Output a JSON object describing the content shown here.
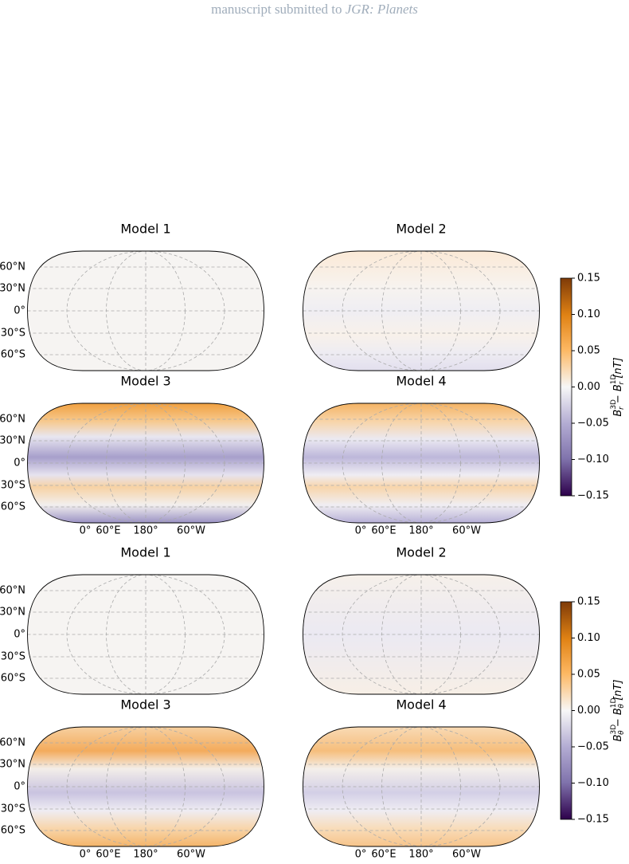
{
  "header": {
    "text": "manuscript submitted to",
    "journal": "JGR: Planets"
  },
  "figures": [
    {
      "panels": [
        "Model 1",
        "Model 2",
        "Model 3",
        "Model 4"
      ],
      "lat_labels": [
        "60°N",
        "30°N",
        "0°",
        "30°S",
        "60°S"
      ],
      "lon_labels": [
        "0°",
        "60°E",
        "180°",
        "60°W"
      ],
      "colorbar": {
        "label": [
          {
            "text": "B",
            "role": "base"
          },
          {
            "text": "3D",
            "role": "sup"
          },
          {
            "text": "r",
            "role": "sub"
          },
          {
            "text": " − B",
            "role": "base"
          },
          {
            "text": "1D",
            "role": "sup"
          },
          {
            "text": "r",
            "role": "sub"
          },
          {
            "text": " [nT]",
            "role": "base"
          }
        ],
        "lim": [
          -0.15,
          0.15
        ],
        "ticks": [
          {
            "value": -0.15,
            "label": "−0.15"
          },
          {
            "value": -0.1,
            "label": "−0.10"
          },
          {
            "value": -0.05,
            "label": "−0.05"
          },
          {
            "value": 0,
            "label": "0.00"
          },
          0.05,
          {
            "value": 0.1,
            "label": "0.10"
          },
          0.15
        ]
      }
    },
    {
      "panels": [
        "Model 1",
        "Model 2",
        "Model 3",
        "Model 4"
      ],
      "lat_labels": [
        "60°N",
        "30°N",
        "0°",
        "30°S",
        "60°S"
      ],
      "lon_labels": [
        "0°",
        "60°E",
        "180°",
        "60°W"
      ],
      "colorbar": {
        "label": [
          {
            "text": "B",
            "role": "base"
          },
          {
            "text": "3D",
            "role": "sup"
          },
          {
            "text": "θ",
            "role": "sub"
          },
          {
            "text": " − B",
            "role": "base"
          },
          {
            "text": "1D",
            "role": "sup"
          },
          {
            "text": "θ",
            "role": "sub"
          },
          {
            "text": " [nT]",
            "role": "base"
          }
        ],
        "lim": [
          -0.15,
          0.15
        ],
        "ticks": [
          {
            "value": -0.15,
            "label": "−0.15"
          },
          {
            "value": -0.1,
            "label": "−0.10"
          },
          {
            "value": -0.05,
            "label": "−0.05"
          },
          {
            "value": 0,
            "label": "0.00"
          },
          0.05,
          {
            "value": 0.1,
            "label": "0.10"
          },
          0.15
        ]
      }
    }
  ]
}
